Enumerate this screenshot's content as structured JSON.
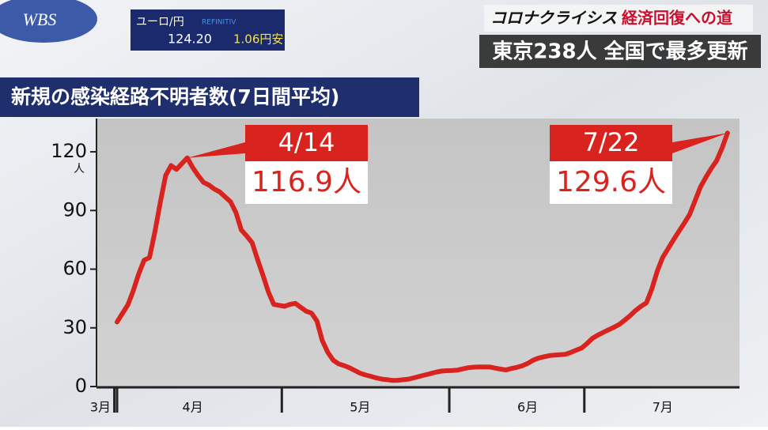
{
  "header": {
    "logo": "WBS",
    "ticker_label": "ユーロ/円",
    "ticker_provider": "REFINITIV",
    "ticker_rate": "124.20",
    "ticker_change": "1.06円安",
    "series_title_a": "コロナクライシス",
    "series_title_b": "経済回復への道",
    "headline": "東京238人 全国で最多更新"
  },
  "chart_data": {
    "type": "line",
    "title": "新規の感染経路不明者数(7日間平均)",
    "y_unit": "人",
    "categories": [
      "3月",
      null,
      null,
      null,
      null,
      null,
      null,
      null,
      null,
      null,
      null,
      null,
      null,
      null,
      "4月",
      null,
      null,
      null,
      null,
      null,
      null,
      null,
      null,
      null,
      null,
      null,
      null,
      null,
      null,
      null,
      null,
      null,
      null,
      null,
      null,
      null,
      null,
      null,
      null,
      null,
      null,
      null,
      null,
      null,
      null,
      "5月",
      null,
      null,
      null,
      null,
      null,
      null,
      null,
      null,
      null,
      null,
      null,
      null,
      null,
      null,
      null,
      null,
      null,
      null,
      null,
      null,
      null,
      null,
      null,
      null,
      null,
      null,
      null,
      null,
      null,
      null,
      "6月",
      null,
      null,
      null,
      null,
      null,
      null,
      null,
      null,
      null,
      null,
      null,
      null,
      null,
      null,
      null,
      null,
      null,
      null,
      null,
      null,
      null,
      null,
      null,
      null,
      "7月",
      null,
      null,
      null,
      null,
      null,
      null,
      null,
      null,
      null,
      null,
      null,
      null
    ],
    "series": [
      {
        "name": "新規の感染経路不明者数",
        "color": "#d8231e",
        "values": [
          33.0,
          37.4,
          41.8,
          49,
          57.5,
          64.6,
          65.9,
          79,
          94,
          108,
          113,
          111,
          114,
          116.9,
          112,
          108,
          104.4,
          103,
          101,
          99.5,
          97,
          94.5,
          89,
          80,
          77,
          73.5,
          65,
          57,
          48.5,
          42,
          41.5,
          41,
          42,
          42.5,
          40.5,
          38.5,
          37.5,
          33.5,
          23.5,
          17.5,
          13.5,
          11.6,
          10.7,
          9.6,
          8.2,
          6.8,
          5.9,
          5.2,
          4.4,
          3.8,
          3.5,
          3.1,
          3.2,
          3.5,
          3.8,
          4.5,
          5.2,
          5.9,
          6.6,
          7.3,
          7.9,
          8.1,
          8.2,
          8.4,
          9,
          9.6,
          9.9,
          10,
          10,
          10,
          9.4,
          8.9,
          8.5,
          9.2,
          9.8,
          10.6,
          11.8,
          13.4,
          14.5,
          15.2,
          15.8,
          16.1,
          16.3,
          16.5,
          17.4,
          18.6,
          19.7,
          22,
          24.6,
          26.3,
          27.7,
          29,
          30.3,
          31.8,
          34,
          36.3,
          38.9,
          41,
          42.8,
          50,
          59,
          66,
          70.5,
          75,
          79.3,
          83.5,
          88,
          95,
          102,
          107,
          111.5,
          115.5,
          122,
          129.6
        ],
        "value_labels": [
          null,
          null,
          null,
          null,
          null,
          null,
          null,
          null,
          null,
          null,
          null,
          null,
          null,
          "116.9人",
          null,
          null,
          null,
          null,
          null,
          null,
          null,
          null,
          null,
          null,
          null,
          null,
          null,
          null,
          null,
          null,
          null,
          null,
          null,
          null,
          null,
          null,
          null,
          null,
          null,
          null,
          null,
          null,
          null,
          null,
          null,
          null,
          null,
          null,
          null,
          null,
          null,
          null,
          null,
          null,
          null,
          null,
          null,
          null,
          null,
          null,
          null,
          null,
          null,
          null,
          null,
          null,
          null,
          null,
          null,
          null,
          null,
          null,
          null,
          null,
          null,
          null,
          null,
          null,
          null,
          null,
          null,
          null,
          null,
          null,
          null,
          null,
          null,
          null,
          null,
          null,
          null,
          null,
          null,
          null,
          null,
          null,
          null,
          null,
          null,
          null,
          null,
          null,
          null,
          null,
          null,
          null,
          null,
          null,
          null,
          null,
          null,
          null,
          null,
          "129.6人"
        ]
      }
    ],
    "annotations": [
      "4/14",
      "7/22"
    ],
    "ylim": [
      0,
      137
    ],
    "yticks": [
      0,
      30,
      60,
      90,
      120
    ]
  }
}
